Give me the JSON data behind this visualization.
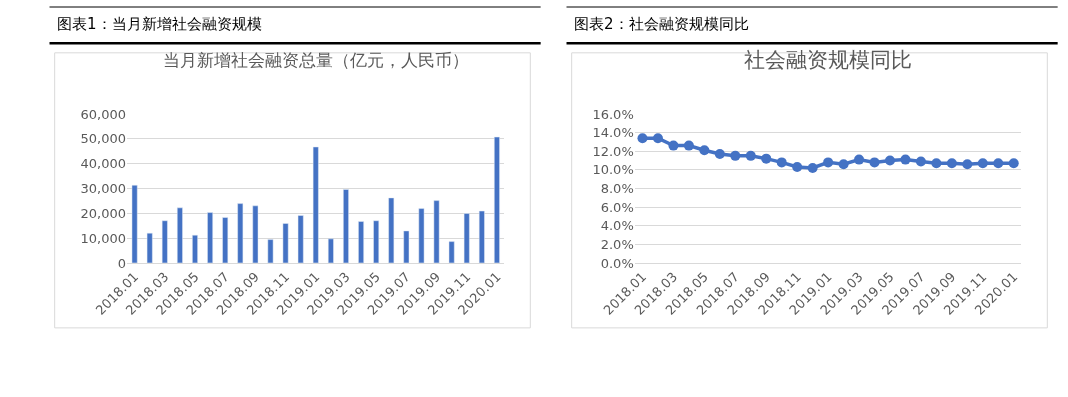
{
  "chart_data": [
    {
      "type": "bar",
      "title": "图表1：当月新增社会融资规模",
      "subtitle": "当月新增社会融资总量（亿元，人民币）",
      "categories": [
        "2018.01",
        null,
        "2018.03",
        null,
        "2018.05",
        null,
        "2018.07",
        null,
        "2018.09",
        null,
        "2018.11",
        null,
        "2019.01",
        null,
        "2019.03",
        null,
        "2019.05",
        null,
        "2019.07",
        null,
        "2019.09",
        null,
        "2019.11",
        null,
        "2020.01"
      ],
      "series": [
        {
          "color": "#4472c4",
          "values": [
            31300,
            12000,
            17000,
            22200,
            11200,
            20300,
            18300,
            23900,
            23000,
            9400,
            15900,
            19100,
            46700,
            9700,
            29600,
            16700,
            17000,
            26200,
            12900,
            21900,
            25100,
            8600,
            19900,
            20900,
            50700
          ]
        }
      ],
      "ylim": [
        0,
        60000
      ],
      "yticks": [
        {
          "value": 0,
          "label": "0"
        },
        {
          "value": 10000,
          "label": "10,000"
        },
        {
          "value": 20000,
          "label": "20,000"
        },
        {
          "value": 30000,
          "label": "30,000"
        },
        {
          "value": 40000,
          "label": "40,000"
        },
        {
          "value": 50000,
          "label": "50,000"
        },
        {
          "value": 60000,
          "label": "60,000"
        }
      ],
      "grid": "y"
    },
    {
      "type": "line",
      "title": "图表2：社会融资规模同比",
      "subtitle": "社会融资规模同比",
      "categories": [
        "2018.01",
        null,
        "2018.03",
        null,
        "2018.05",
        null,
        "2018.07",
        null,
        "2018.09",
        null,
        "2018.11",
        null,
        "2019.01",
        null,
        "2019.03",
        null,
        "2019.05",
        null,
        "2019.07",
        null,
        "2019.09",
        null,
        "2019.11",
        null,
        "2020.01"
      ],
      "series": [
        {
          "color": "#4472c4",
          "values": [
            13.4,
            13.4,
            12.6,
            12.6,
            12.1,
            11.7,
            11.5,
            11.5,
            11.2,
            10.8,
            10.3,
            10.2,
            10.8,
            10.6,
            11.1,
            10.8,
            11.0,
            11.1,
            10.9,
            10.7,
            10.7,
            10.6,
            10.7,
            10.7,
            10.7
          ]
        }
      ],
      "ylim": [
        0,
        16
      ],
      "yticks": [
        {
          "value": 0,
          "label": "0.0%"
        },
        {
          "value": 2,
          "label": "2.0%"
        },
        {
          "value": 4,
          "label": "4.0%"
        },
        {
          "value": 6,
          "label": "6.0%"
        },
        {
          "value": 8,
          "label": "8.0%"
        },
        {
          "value": 10,
          "label": "10.0%"
        },
        {
          "value": 12,
          "label": "12.0%"
        },
        {
          "value": 14,
          "label": "14.0%"
        },
        {
          "value": 16,
          "label": "16.0%"
        }
      ],
      "grid": "y",
      "marker": "circle",
      "line_style": "solid"
    }
  ]
}
